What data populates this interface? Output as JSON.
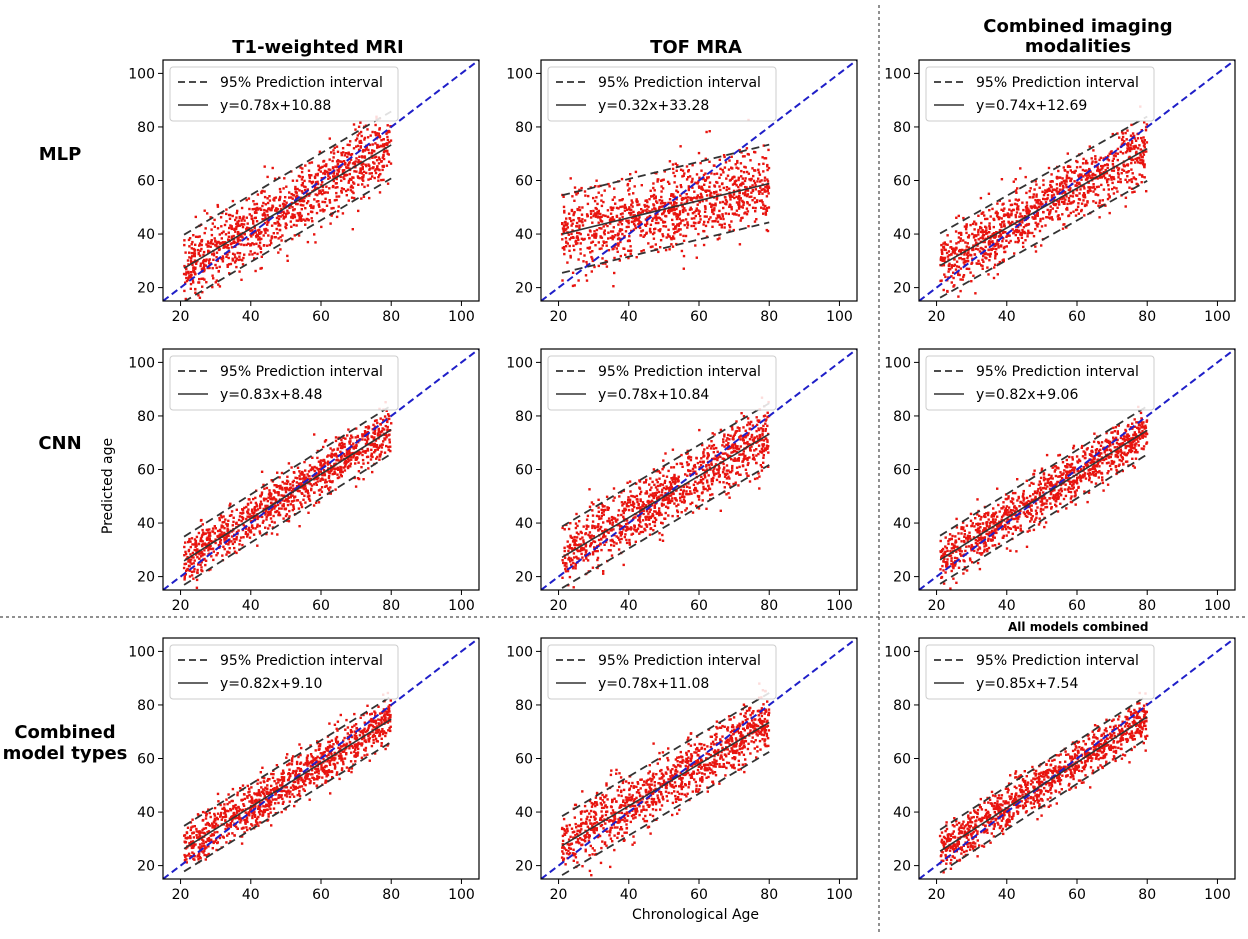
{
  "figure": {
    "column_titles": [
      "T1-weighted MRI",
      "TOF MRA",
      "Combined imaging",
      "modalities"
    ],
    "row_labels": [
      "MLP",
      "CNN",
      "Combined",
      "model types"
    ],
    "all_models_title": "All models combined",
    "xlabel": "Chronological Age",
    "ylabel": "Predicted age"
  },
  "colors": {
    "points": "#e8140f",
    "identity_line": "#1f1fc8",
    "fit_line": "#333333",
    "interval_line": "#333333",
    "axes": "#000000"
  },
  "chart_data": [
    {
      "type": "scatter",
      "id": "mlp-t1",
      "row": "MLP",
      "column": "T1-weighted MRI",
      "slope": 0.78,
      "intercept": 10.88,
      "pi_half_width": 12.5,
      "legend": [
        "95% Prediction interval",
        "y=0.78x+10.88"
      ],
      "xlim": [
        15,
        105
      ],
      "ylim": [
        15,
        105
      ],
      "xticks": [
        20,
        40,
        60,
        80,
        100
      ],
      "yticks": [
        20,
        40,
        60,
        80,
        100
      ],
      "x_range": [
        21,
        80
      ],
      "seed": 11
    },
    {
      "type": "scatter",
      "id": "mlp-tof",
      "row": "MLP",
      "column": "TOF MRA",
      "slope": 0.32,
      "intercept": 33.28,
      "pi_half_width": 14.5,
      "legend": [
        "95% Prediction interval",
        "y=0.32x+33.28"
      ],
      "xlim": [
        15,
        105
      ],
      "ylim": [
        15,
        105
      ],
      "xticks": [
        20,
        40,
        60,
        80,
        100
      ],
      "yticks": [
        20,
        40,
        60,
        80,
        100
      ],
      "x_range": [
        21,
        80
      ],
      "seed": 12
    },
    {
      "type": "scatter",
      "id": "mlp-combined",
      "row": "MLP",
      "column": "Combined imaging modalities",
      "slope": 0.74,
      "intercept": 12.69,
      "pi_half_width": 12.0,
      "legend": [
        "95% Prediction interval",
        "y=0.74x+12.69"
      ],
      "xlim": [
        15,
        105
      ],
      "ylim": [
        15,
        105
      ],
      "xticks": [
        20,
        40,
        60,
        80,
        100
      ],
      "yticks": [
        20,
        40,
        60,
        80,
        100
      ],
      "x_range": [
        21,
        80
      ],
      "seed": 13
    },
    {
      "type": "scatter",
      "id": "cnn-t1",
      "row": "CNN",
      "column": "T1-weighted MRI",
      "slope": 0.83,
      "intercept": 8.48,
      "pi_half_width": 9.0,
      "legend": [
        "95% Prediction interval",
        "y=0.83x+8.48"
      ],
      "xlim": [
        15,
        105
      ],
      "ylim": [
        15,
        105
      ],
      "xticks": [
        20,
        40,
        60,
        80,
        100
      ],
      "yticks": [
        20,
        40,
        60,
        80,
        100
      ],
      "x_range": [
        21,
        80
      ],
      "seed": 21
    },
    {
      "type": "scatter",
      "id": "cnn-tof",
      "row": "CNN",
      "column": "TOF MRA",
      "slope": 0.78,
      "intercept": 10.84,
      "pi_half_width": 11.5,
      "legend": [
        "95% Prediction interval",
        "y=0.78x+10.84"
      ],
      "xlim": [
        15,
        105
      ],
      "ylim": [
        15,
        105
      ],
      "xticks": [
        20,
        40,
        60,
        80,
        100
      ],
      "yticks": [
        20,
        40,
        60,
        80,
        100
      ],
      "x_range": [
        21,
        80
      ],
      "seed": 22
    },
    {
      "type": "scatter",
      "id": "cnn-combined",
      "row": "CNN",
      "column": "Combined imaging modalities",
      "slope": 0.82,
      "intercept": 9.06,
      "pi_half_width": 9.0,
      "legend": [
        "95% Prediction interval",
        "y=0.82x+9.06"
      ],
      "xlim": [
        15,
        105
      ],
      "ylim": [
        15,
        105
      ],
      "xticks": [
        20,
        40,
        60,
        80,
        100
      ],
      "yticks": [
        20,
        40,
        60,
        80,
        100
      ],
      "x_range": [
        21,
        80
      ],
      "seed": 23
    },
    {
      "type": "scatter",
      "id": "comb-t1",
      "row": "Combined model types",
      "column": "T1-weighted MRI",
      "slope": 0.82,
      "intercept": 9.1,
      "pi_half_width": 8.5,
      "legend": [
        "95% Prediction interval",
        "y=0.82x+9.10"
      ],
      "xlim": [
        15,
        105
      ],
      "ylim": [
        15,
        105
      ],
      "xticks": [
        20,
        40,
        60,
        80,
        100
      ],
      "yticks": [
        20,
        40,
        60,
        80,
        100
      ],
      "x_range": [
        21,
        80
      ],
      "seed": 31
    },
    {
      "type": "scatter",
      "id": "comb-tof",
      "row": "Combined model types",
      "column": "TOF MRA",
      "slope": 0.78,
      "intercept": 11.08,
      "pi_half_width": 11.0,
      "legend": [
        "95% Prediction interval",
        "y=0.78x+11.08"
      ],
      "xlim": [
        15,
        105
      ],
      "ylim": [
        15,
        105
      ],
      "xticks": [
        20,
        40,
        60,
        80,
        100
      ],
      "yticks": [
        20,
        40,
        60,
        80,
        100
      ],
      "x_range": [
        21,
        80
      ],
      "seed": 32
    },
    {
      "type": "scatter",
      "id": "all-combined",
      "row": "Combined model types",
      "column": "All models combined",
      "slope": 0.85,
      "intercept": 7.54,
      "pi_half_width": 8.0,
      "legend": [
        "95% Prediction interval",
        "y=0.85x+7.54"
      ],
      "xlim": [
        15,
        105
      ],
      "ylim": [
        15,
        105
      ],
      "xticks": [
        20,
        40,
        60,
        80,
        100
      ],
      "yticks": [
        20,
        40,
        60,
        80,
        100
      ],
      "x_range": [
        21,
        80
      ],
      "seed": 33
    }
  ]
}
